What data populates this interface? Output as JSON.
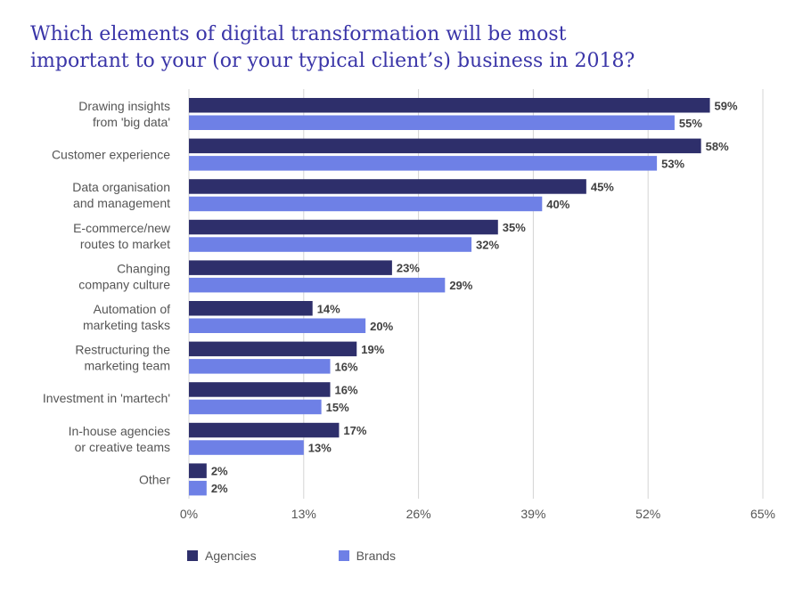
{
  "title_lines": [
    "Which elements of digital transformation will be most",
    "important to your (or your typical client’s) business in 2018?"
  ],
  "colors": {
    "agencies": "#2e2f6b",
    "brands": "#6e80e6",
    "grid": "#d4d4d4",
    "label": "#555555",
    "value": "#404040"
  },
  "chart_data": {
    "type": "bar",
    "orientation": "horizontal",
    "categories": [
      [
        "Drawing insights",
        "from 'big data'"
      ],
      [
        "Customer experience"
      ],
      [
        "Data organisation",
        "and management"
      ],
      [
        "E-commerce/new",
        "routes to market"
      ],
      [
        "Changing",
        "company culture"
      ],
      [
        "Automation of",
        "marketing tasks"
      ],
      [
        "Restructuring the",
        "marketing team"
      ],
      [
        "Investment in 'martech'"
      ],
      [
        "In-house agencies",
        "or creative teams"
      ],
      [
        "Other"
      ]
    ],
    "series": [
      {
        "name": "Agencies",
        "values": [
          59,
          58,
          45,
          35,
          23,
          14,
          19,
          16,
          17,
          2
        ]
      },
      {
        "name": "Brands",
        "values": [
          55,
          53,
          40,
          32,
          29,
          20,
          16,
          15,
          13,
          2
        ]
      }
    ],
    "xlim": [
      0,
      65
    ],
    "xticks": [
      0,
      13,
      26,
      39,
      52,
      65
    ],
    "tick_suffix": "%",
    "value_suffix": "%",
    "grid": true,
    "legend": "bottom-left"
  }
}
